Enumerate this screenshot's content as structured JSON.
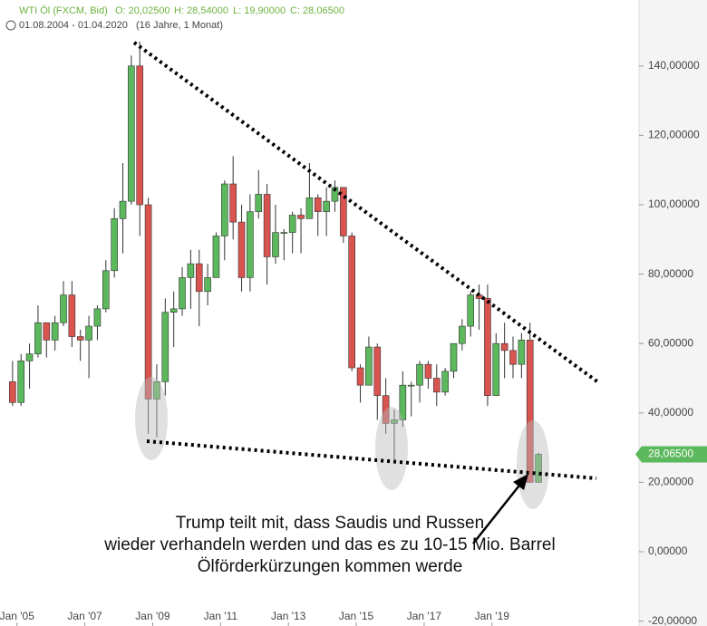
{
  "chart_data": {
    "type": "candlestick",
    "header": {
      "instrument": "WTI Öl (FXCM, Bid)",
      "open": "O: 20,02500",
      "high": "H: 28,54000",
      "low": "L: 19,90000",
      "close": "C: 28,06500",
      "range": "01.08.2004 - 01.04.2020",
      "duration": "(16 Jahre, 1 Monat)"
    },
    "annotation": [
      "Trump teilt mit, dass Saudis und Russen",
      "wieder verhandeln werden und das es zu 10-15 Mio. Barrel",
      "Ölförderkürzungen kommen werde"
    ],
    "price_tag": {
      "value": 28.065,
      "label": "28,06500"
    },
    "up_color": "#5cb85c",
    "down_color": "#d9534f",
    "x": [
      "2004-10",
      "2005-01",
      "2005-04",
      "2005-07",
      "2005-10",
      "2006-01",
      "2006-04",
      "2006-07",
      "2006-10",
      "2007-01",
      "2007-04",
      "2007-07",
      "2007-10",
      "2008-01",
      "2008-04",
      "2008-07",
      "2008-10",
      "2009-01",
      "2009-04",
      "2009-07",
      "2009-10",
      "2010-01",
      "2010-04",
      "2010-07",
      "2010-10",
      "2011-01",
      "2011-04",
      "2011-07",
      "2011-10",
      "2012-01",
      "2012-04",
      "2012-07",
      "2012-10",
      "2013-01",
      "2013-04",
      "2013-07",
      "2013-10",
      "2014-01",
      "2014-04",
      "2014-07",
      "2014-10",
      "2015-01",
      "2015-04",
      "2015-07",
      "2015-10",
      "2016-01",
      "2016-04",
      "2016-07",
      "2016-10",
      "2017-01",
      "2017-04",
      "2017-07",
      "2017-10",
      "2018-01",
      "2018-04",
      "2018-07",
      "2018-10",
      "2019-01",
      "2019-04",
      "2019-07",
      "2019-10",
      "2020-01",
      "2020-04"
    ],
    "open": [
      49,
      43,
      55,
      57,
      66,
      61,
      66,
      74,
      62,
      61,
      65,
      70,
      81,
      96,
      101,
      140,
      100,
      44,
      49,
      69,
      70,
      79,
      83,
      75,
      79,
      91,
      106,
      95,
      79,
      98,
      103,
      85,
      92,
      92,
      97,
      96,
      102,
      98,
      101,
      105,
      91,
      53,
      48,
      59,
      45,
      37,
      38,
      48,
      48,
      54,
      50,
      46,
      52,
      60,
      65,
      74,
      73,
      45,
      60,
      58,
      54,
      61,
      20.025
    ],
    "high": [
      55,
      57,
      60,
      71,
      66,
      68,
      78,
      78,
      64,
      68,
      71,
      84,
      99,
      112,
      143,
      147,
      102,
      54,
      73,
      75,
      82,
      87,
      87,
      83,
      92,
      107,
      114,
      100,
      103,
      110,
      106,
      100,
      93,
      98,
      99,
      112,
      103,
      105,
      107,
      105,
      92,
      54,
      62,
      60,
      50,
      41,
      52,
      49,
      55,
      55,
      54,
      53,
      60,
      67,
      75,
      77,
      77,
      63,
      66,
      62,
      63,
      66,
      28.54
    ],
    "low": [
      42,
      42,
      47,
      56,
      56,
      58,
      65,
      59,
      55,
      50,
      61,
      69,
      79,
      86,
      100,
      91,
      34,
      33,
      45,
      59,
      68,
      70,
      65,
      71,
      79,
      84,
      90,
      75,
      75,
      96,
      77,
      83,
      84,
      86,
      86,
      97,
      91,
      91,
      98,
      89,
      52,
      43,
      48,
      38,
      34,
      26,
      36,
      39,
      43,
      47,
      42,
      45,
      50,
      58,
      62,
      64,
      42,
      45,
      50,
      50,
      50,
      20,
      19.9
    ],
    "close": [
      43,
      55,
      57,
      66,
      61,
      66,
      74,
      62,
      61,
      65,
      70,
      81,
      96,
      101,
      140,
      100,
      44,
      49,
      69,
      70,
      79,
      83,
      75,
      79,
      91,
      106,
      95,
      79,
      98,
      103,
      85,
      92,
      92,
      97,
      96,
      102,
      98,
      101,
      105,
      91,
      53,
      48,
      59,
      45,
      37,
      38,
      48,
      48,
      54,
      50,
      46,
      52,
      60,
      65,
      74,
      73,
      45,
      60,
      58,
      54,
      61,
      20,
      28.065
    ],
    "xlim": [
      "2004-07",
      "2023-05"
    ],
    "xticks": [
      {
        "value": "2005-01",
        "label": "Jan '05"
      },
      {
        "value": "2007-01",
        "label": "Jan '07"
      },
      {
        "value": "2009-01",
        "label": "Jan '09"
      },
      {
        "value": "2011-01",
        "label": "Jan '11"
      },
      {
        "value": "2013-01",
        "label": "Jan '13"
      },
      {
        "value": "2015-01",
        "label": "Jan '15"
      },
      {
        "value": "2017-01",
        "label": "Jan '17"
      },
      {
        "value": "2019-01",
        "label": "Jan '19"
      }
    ],
    "ylim": [
      -21.4,
      159
    ],
    "yticks": [
      {
        "value": -20,
        "label": "-20,00000"
      },
      {
        "value": 0,
        "label": "0,00000"
      },
      {
        "value": 20,
        "label": "20,00000"
      },
      {
        "value": 40,
        "label": "40,00000"
      },
      {
        "value": 60,
        "label": "60,00000"
      },
      {
        "value": 80,
        "label": "80,00000"
      },
      {
        "value": 100,
        "label": "100,00000"
      },
      {
        "value": 120,
        "label": "120,00000"
      },
      {
        "value": 140,
        "label": "140,00000"
      }
    ]
  }
}
